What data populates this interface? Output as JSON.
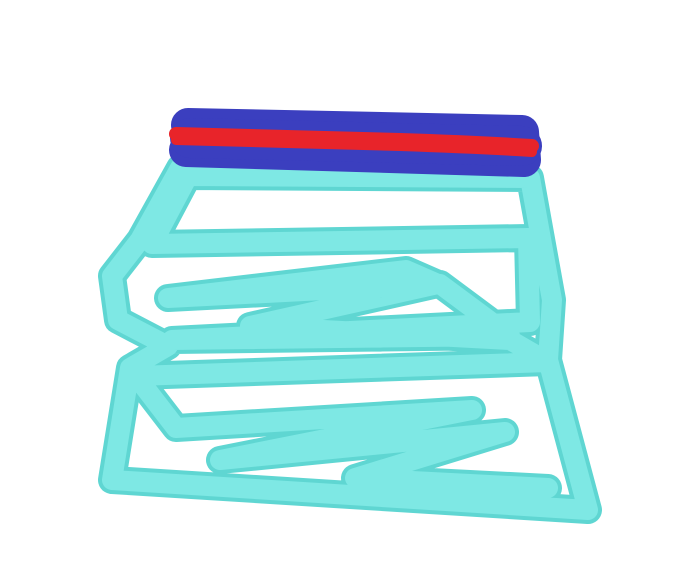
{
  "drawing": {
    "colors": {
      "background": "#ffffff",
      "cyan_fill": "#7ee8e4",
      "cyan_edge": "#5fd6d2",
      "blue_band": "#3b3fbf",
      "red_band": "#e8242a"
    },
    "strokes": [
      {
        "name": "blue-band-stroke",
        "color": "blue_band"
      },
      {
        "name": "red-band-stroke",
        "color": "red_band"
      },
      {
        "name": "cyan-zigzag-stroke",
        "color": "cyan_fill"
      }
    ]
  }
}
